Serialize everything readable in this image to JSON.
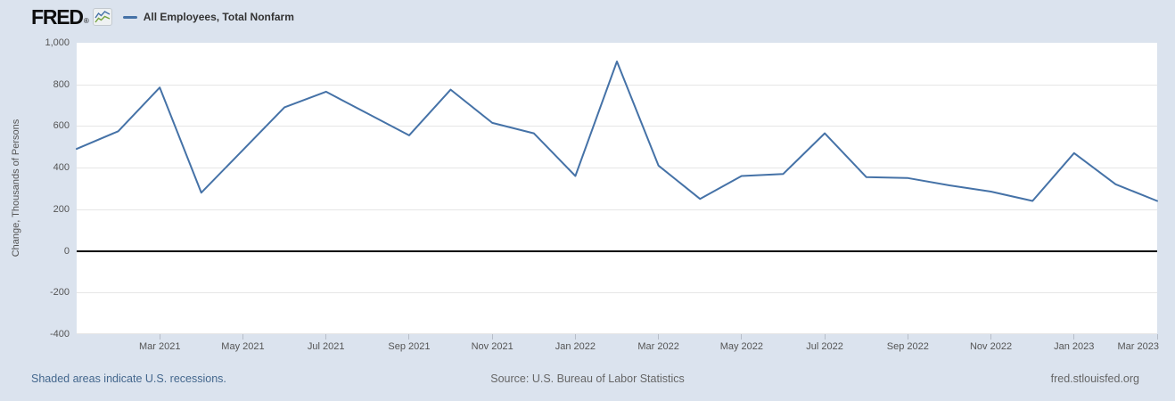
{
  "header": {
    "logo_text": "FRED",
    "registered_mark": "®",
    "legend": {
      "label": "All Employees, Total Nonfarm"
    }
  },
  "chart_data": {
    "type": "line",
    "title": "All Employees, Total Nonfarm",
    "xlabel": "",
    "ylabel": "Change, Thousands of Persons",
    "x": [
      "Jan 2021",
      "Feb 2021",
      "Mar 2021",
      "Apr 2021",
      "May 2021",
      "Jun 2021",
      "Jul 2021",
      "Aug 2021",
      "Sep 2021",
      "Oct 2021",
      "Nov 2021",
      "Dec 2021",
      "Jan 2022",
      "Feb 2022",
      "Mar 2022",
      "Apr 2022",
      "May 2022",
      "Jun 2022",
      "Jul 2022",
      "Aug 2022",
      "Sep 2022",
      "Oct 2022",
      "Nov 2022",
      "Dec 2022",
      "Jan 2023",
      "Feb 2023",
      "Mar 2023"
    ],
    "values": [
      490,
      575,
      785,
      280,
      485,
      690,
      765,
      660,
      555,
      775,
      615,
      565,
      360,
      910,
      410,
      250,
      360,
      370,
      565,
      355,
      350,
      315,
      285,
      240,
      470,
      320,
      240
    ],
    "x_tick_labels": [
      "Mar 2021",
      "May 2021",
      "Jul 2021",
      "Sep 2021",
      "Nov 2021",
      "Jan 2022",
      "Mar 2022",
      "May 2022",
      "Jul 2022",
      "Sep 2022",
      "Nov 2022",
      "Jan 2023",
      "Mar 2023"
    ],
    "y_ticks": [
      1000,
      800,
      600,
      400,
      200,
      0,
      -200,
      -400
    ],
    "ylim": [
      -400,
      1000
    ],
    "grid": "horizontal",
    "zero_line": true,
    "legend_position": "top-left"
  },
  "footer": {
    "recessions_note": "Shaded areas indicate U.S. recessions.",
    "source": "Source: U.S. Bureau of Labor Statistics",
    "site": "fred.stlouisfed.org"
  },
  "colors": {
    "page_background": "#dbe3ee",
    "plot_background": "#ffffff",
    "line": "#4572a7",
    "gridline": "#e6e6e6",
    "zero_line": "#000000",
    "axis_text": "#555555",
    "legend_text": "#333333",
    "footer_link": "#44678d",
    "footer_text": "#666666",
    "logo_text": "#0d0d0d"
  }
}
